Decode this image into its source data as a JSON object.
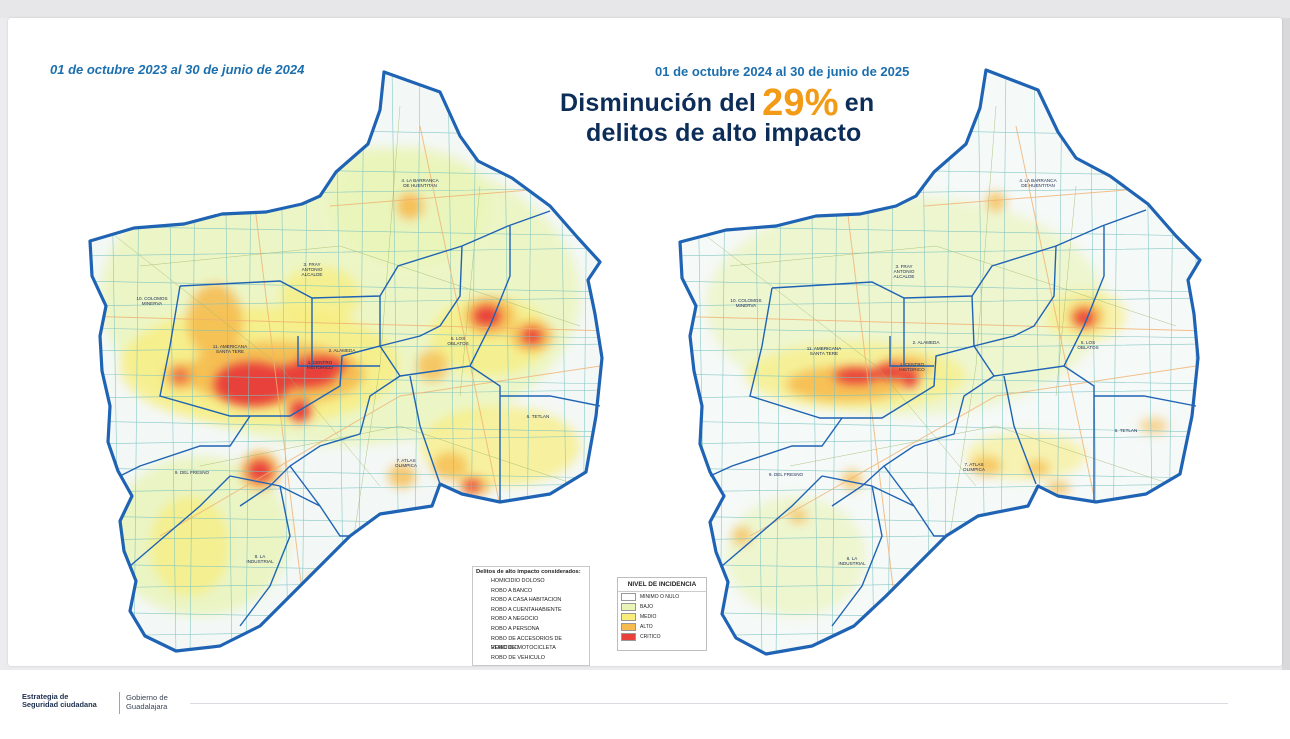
{
  "slide": {
    "left_period": "01 de octubre 2023 al 30 de junio de 2024",
    "right_period": "01 de octubre 2024 al 30 de junio de 2025",
    "headline_pre": "Disminución del",
    "headline_pct": "29%",
    "headline_post": "en",
    "headline_line2": "delitos de alto impacto"
  },
  "colors": {
    "period_text": "#1c6fae",
    "headline": "#0d2d59",
    "percentage": "#f39a17",
    "map_border": "#1f63b4",
    "heat_bajo": "#e9f4b6",
    "heat_medio": "#f8ec7a",
    "heat_alto": "#f6bb4e",
    "heat_critico": "#e8413b"
  },
  "map_labels": {
    "barranca": [
      "4. LA BARRANCA",
      "DE HUENTITAN"
    ],
    "colomos": [
      "10. COLOMOS",
      "MINERVA"
    ],
    "fray": [
      "3. FRAY",
      "ANTONIO",
      "ALCALDE"
    ],
    "americana": [
      "11. AMERICANA",
      "SANTA TERE"
    ],
    "alameda": "2. ALAMEDA",
    "centro": [
      "1. CENTRO",
      "HISTORICO"
    ],
    "oblatos": [
      "5. LOS",
      "OBLATOS"
    ],
    "tetlan": "6. TETLAN",
    "fresno": "9. DEL FRESNO",
    "atlas": [
      "7. ATLAS",
      "OLIMPICA"
    ],
    "industrial": [
      "8. LA",
      "INDUSTRIAL"
    ]
  },
  "crimes_legend": {
    "title": "Delitos de alto impacto considerados:",
    "items": [
      "HOMICIDIO DOLOSO",
      "ROBO A BANCO",
      "ROBO A CASA HABITACION",
      "ROBO A CUENTAHABIENTE",
      "ROBO A NEGOCIO",
      "ROBO A PERSONA",
      "ROBO DE ACCESORIOS DE VEHICULO",
      "ROBO DE MOTOCICLETA",
      "ROBO DE VEHICULO"
    ]
  },
  "incidence_legend": {
    "title": "NIVEL DE INCIDENCIA",
    "levels": [
      {
        "label": "MINIMO O NULO",
        "color": "#ffffff"
      },
      {
        "label": "BAJO",
        "color": "#e9f4b6"
      },
      {
        "label": "MEDIO",
        "color": "#f8ec7a"
      },
      {
        "label": "ALTO",
        "color": "#f6bb4e"
      },
      {
        "label": "CRITICO",
        "color": "#e8413b"
      }
    ]
  },
  "footer": {
    "brand1_line1": "Estrategia de",
    "brand1_line2": "Seguridad ciudadana",
    "brand2_line1": "Gobierno de",
    "brand2_line2": "Guadalajara"
  }
}
